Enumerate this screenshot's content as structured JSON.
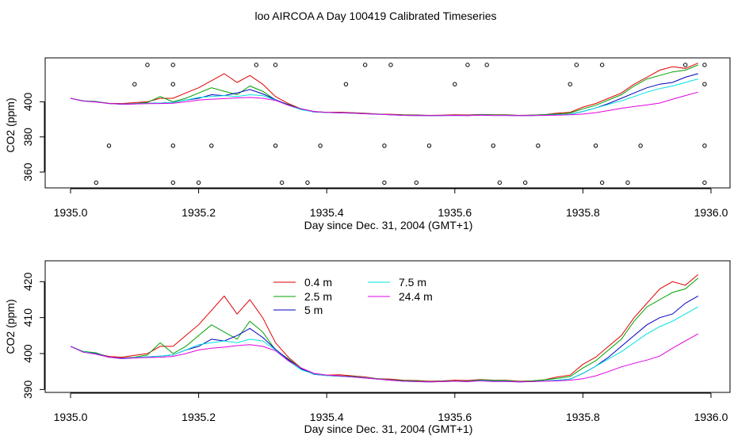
{
  "page": {
    "title": "loo AIRCOA A  Day 100419  Calibrated Timeseries"
  },
  "colors": {
    "0.4 m": "#e00000",
    "2.5 m": "#00a000",
    "5 m": "#0000c0",
    "7.5 m": "#00e0e0",
    "24.4 m": "#e000e0"
  },
  "chart_data": [
    {
      "type": "line",
      "title": "loo AIRCOA A  Day 100419  Calibrated Timeseries",
      "xlabel": "Day since Dec. 31, 2004 (GMT+1)",
      "ylabel": "CO2 (ppm)",
      "xlim": [
        1935.0,
        1936.0
      ],
      "ylim": [
        351,
        425
      ],
      "xticks": [
        "1935.0",
        "1935.2",
        "1935.4",
        "1935.6",
        "1935.8",
        "1936.0"
      ],
      "yticks": [
        "360",
        "380",
        "400"
      ],
      "ytick_values": [
        360,
        380,
        400
      ],
      "grid": false,
      "legend": "none",
      "x": [
        1935.0,
        1935.02,
        1935.04,
        1935.06,
        1935.08,
        1935.1,
        1935.12,
        1935.14,
        1935.16,
        1935.18,
        1935.2,
        1935.22,
        1935.24,
        1935.26,
        1935.28,
        1935.3,
        1935.32,
        1935.34,
        1935.36,
        1935.38,
        1935.4,
        1935.42,
        1935.44,
        1935.46,
        1935.48,
        1935.5,
        1935.52,
        1935.54,
        1935.56,
        1935.58,
        1935.6,
        1935.62,
        1935.64,
        1935.66,
        1935.68,
        1935.7,
        1935.72,
        1935.74,
        1935.76,
        1935.78,
        1935.8,
        1935.82,
        1935.84,
        1935.86,
        1935.88,
        1935.9,
        1935.92,
        1935.94,
        1935.96,
        1935.98
      ],
      "series": [
        {
          "name": "0.4 m",
          "values": [
            402,
            400.5,
            400,
            399.2,
            399,
            399.5,
            400,
            402,
            402,
            405,
            408,
            412,
            416,
            411,
            415,
            410,
            403,
            399,
            396,
            394.5,
            394,
            394.1,
            393.8,
            393.5,
            393,
            392.9,
            392.6,
            392.5,
            392.3,
            392.4,
            392.6,
            392.5,
            392.8,
            392.6,
            392.6,
            392.3,
            392.4,
            392.7,
            393.5,
            394,
            397,
            399,
            402,
            405,
            410,
            414,
            418,
            420,
            419,
            422
          ]
        },
        {
          "name": "2.5 m",
          "values": [
            402,
            400.6,
            400.2,
            399,
            398.8,
            399,
            399.6,
            403,
            400,
            402,
            405,
            408,
            406,
            404,
            409,
            406,
            401,
            398.5,
            396,
            394.4,
            394,
            393.8,
            393.7,
            393.3,
            393,
            392.7,
            392.5,
            392.4,
            392.2,
            392.3,
            392.4,
            392.3,
            392.7,
            392.5,
            392.5,
            392.2,
            392.4,
            392.7,
            393.1,
            393.6,
            396,
            398,
            401,
            404,
            409,
            413,
            415,
            417,
            418,
            421
          ]
        },
        {
          "name": "5 m",
          "values": [
            402,
            400.4,
            400,
            399,
            398.6,
            398.8,
            399.1,
            399.3,
            399.6,
            401,
            402,
            404,
            403.5,
            405,
            407,
            404.5,
            401.2,
            398.3,
            395.8,
            394.2,
            393.9,
            393.7,
            393.5,
            393.2,
            392.9,
            392.6,
            392.3,
            392.2,
            392.1,
            392.2,
            392.3,
            392.2,
            392.5,
            392.3,
            392.3,
            392.1,
            392.2,
            392.4,
            392.6,
            392.9,
            394.5,
            396.5,
            399,
            402,
            405,
            408,
            410,
            411,
            414,
            416
          ]
        },
        {
          "name": "7.5 m",
          "values": [
            402,
            400.5,
            399.9,
            399,
            398.7,
            398.9,
            399.1,
            399.3,
            399.6,
            401,
            402.5,
            403,
            403.5,
            403,
            404,
            403.5,
            401,
            398,
            395.5,
            394.3,
            393.9,
            393.7,
            393.5,
            393.3,
            392.9,
            392.6,
            392.3,
            392.2,
            392.1,
            392.2,
            392.3,
            392.2,
            392.5,
            392.3,
            392.3,
            392.1,
            392.2,
            392.4,
            392.6,
            392.9,
            394.5,
            396.5,
            398.5,
            400.5,
            403,
            405.5,
            407.5,
            409,
            411,
            413
          ]
        },
        {
          "name": "24.4 m",
          "values": [
            402,
            400.4,
            399.8,
            399,
            398.7,
            398.8,
            398.9,
            399,
            399.2,
            400,
            401,
            401.5,
            401.8,
            402.2,
            402.5,
            402,
            400.8,
            398,
            396,
            394.5,
            394,
            393.8,
            393.5,
            393.2,
            392.9,
            392.6,
            392.3,
            392.2,
            392.1,
            392.2,
            392.3,
            392.2,
            392.4,
            392.2,
            392.2,
            392.1,
            392.2,
            392.3,
            392.4,
            392.6,
            393,
            393.8,
            395,
            396.3,
            397.3,
            398.2,
            399.3,
            401.5,
            403.5,
            405.5
          ]
        }
      ],
      "outliers": [
        {
          "x": 1935.04,
          "y": 354
        },
        {
          "x": 1935.06,
          "y": 375
        },
        {
          "x": 1935.1,
          "y": 410
        },
        {
          "x": 1935.12,
          "y": 421
        },
        {
          "x": 1935.16,
          "y": 421
        },
        {
          "x": 1935.16,
          "y": 410
        },
        {
          "x": 1935.16,
          "y": 375
        },
        {
          "x": 1935.16,
          "y": 354
        },
        {
          "x": 1935.2,
          "y": 354
        },
        {
          "x": 1935.22,
          "y": 375
        },
        {
          "x": 1935.29,
          "y": 421
        },
        {
          "x": 1935.32,
          "y": 421
        },
        {
          "x": 1935.32,
          "y": 375
        },
        {
          "x": 1935.33,
          "y": 354
        },
        {
          "x": 1935.37,
          "y": 354
        },
        {
          "x": 1935.39,
          "y": 375
        },
        {
          "x": 1935.43,
          "y": 410
        },
        {
          "x": 1935.46,
          "y": 421
        },
        {
          "x": 1935.49,
          "y": 375
        },
        {
          "x": 1935.49,
          "y": 354
        },
        {
          "x": 1935.5,
          "y": 421
        },
        {
          "x": 1935.54,
          "y": 354
        },
        {
          "x": 1935.56,
          "y": 375
        },
        {
          "x": 1935.6,
          "y": 410
        },
        {
          "x": 1935.62,
          "y": 421
        },
        {
          "x": 1935.65,
          "y": 421
        },
        {
          "x": 1935.66,
          "y": 375
        },
        {
          "x": 1935.67,
          "y": 354
        },
        {
          "x": 1935.71,
          "y": 354
        },
        {
          "x": 1935.73,
          "y": 375
        },
        {
          "x": 1935.78,
          "y": 410
        },
        {
          "x": 1935.79,
          "y": 421
        },
        {
          "x": 1935.82,
          "y": 375
        },
        {
          "x": 1935.83,
          "y": 421
        },
        {
          "x": 1935.83,
          "y": 354
        },
        {
          "x": 1935.87,
          "y": 354
        },
        {
          "x": 1935.89,
          "y": 375
        },
        {
          "x": 1935.96,
          "y": 421
        },
        {
          "x": 1935.99,
          "y": 421
        },
        {
          "x": 1935.99,
          "y": 410
        },
        {
          "x": 1935.99,
          "y": 375
        },
        {
          "x": 1935.99,
          "y": 354
        }
      ]
    },
    {
      "type": "line",
      "xlabel": "Day since Dec. 31, 2004 (GMT+1)",
      "ylabel": "CO2 (ppm)",
      "xlim": [
        1935.0,
        1936.0
      ],
      "ylim": [
        389.2,
        425.8
      ],
      "xticks": [
        "1935.0",
        "1935.2",
        "1935.4",
        "1935.6",
        "1935.8",
        "1936.0"
      ],
      "yticks": [
        "390",
        "400",
        "410",
        "420"
      ],
      "ytick_values": [
        390,
        400,
        410,
        420
      ],
      "grid": false,
      "legend": "top-left",
      "x": [
        1935.0,
        1935.02,
        1935.04,
        1935.06,
        1935.08,
        1935.1,
        1935.12,
        1935.14,
        1935.16,
        1935.18,
        1935.2,
        1935.22,
        1935.24,
        1935.26,
        1935.28,
        1935.3,
        1935.32,
        1935.34,
        1935.36,
        1935.38,
        1935.4,
        1935.42,
        1935.44,
        1935.46,
        1935.48,
        1935.5,
        1935.52,
        1935.54,
        1935.56,
        1935.58,
        1935.6,
        1935.62,
        1935.64,
        1935.66,
        1935.68,
        1935.7,
        1935.72,
        1935.74,
        1935.76,
        1935.78,
        1935.8,
        1935.82,
        1935.84,
        1935.86,
        1935.88,
        1935.9,
        1935.92,
        1935.94,
        1935.96,
        1935.98
      ],
      "series": [
        {
          "name": "0.4 m",
          "values": [
            402,
            400.5,
            400,
            399.2,
            399,
            399.5,
            400,
            402,
            402,
            405,
            408,
            412,
            416,
            411,
            415,
            410,
            403,
            399,
            396,
            394.5,
            394,
            394.1,
            393.8,
            393.5,
            393,
            392.9,
            392.6,
            392.5,
            392.3,
            392.4,
            392.6,
            392.5,
            392.8,
            392.6,
            392.6,
            392.3,
            392.4,
            392.7,
            393.5,
            394,
            397,
            399,
            402,
            405,
            410,
            414,
            418,
            420,
            419,
            422
          ]
        },
        {
          "name": "2.5 m",
          "values": [
            402,
            400.6,
            400.2,
            399,
            398.8,
            399,
            399.6,
            403,
            400,
            402,
            405,
            408,
            406,
            404,
            409,
            406,
            401,
            398.5,
            396,
            394.4,
            394,
            393.8,
            393.7,
            393.3,
            393,
            392.7,
            392.5,
            392.4,
            392.2,
            392.3,
            392.4,
            392.3,
            392.7,
            392.5,
            392.5,
            392.2,
            392.4,
            392.7,
            393.1,
            393.6,
            396,
            398,
            401,
            404,
            409,
            413,
            415,
            417,
            418,
            421
          ]
        },
        {
          "name": "5 m",
          "values": [
            402,
            400.4,
            400,
            399,
            398.6,
            398.8,
            399.1,
            399.3,
            399.6,
            401,
            402,
            404,
            403.5,
            405,
            407,
            404.5,
            401.2,
            398.3,
            395.8,
            394.2,
            393.9,
            393.7,
            393.5,
            393.2,
            392.9,
            392.6,
            392.3,
            392.2,
            392.1,
            392.2,
            392.3,
            392.2,
            392.5,
            392.3,
            392.3,
            392.1,
            392.2,
            392.4,
            392.6,
            392.9,
            394.5,
            396.5,
            399,
            402,
            405,
            408,
            410,
            411,
            414,
            416
          ]
        },
        {
          "name": "7.5 m",
          "values": [
            402,
            400.5,
            399.9,
            399,
            398.7,
            398.9,
            399.1,
            399.3,
            399.6,
            401,
            402.5,
            403,
            403.5,
            403,
            404,
            403.5,
            401,
            398,
            395.5,
            394.3,
            393.9,
            393.7,
            393.5,
            393.3,
            392.9,
            392.6,
            392.3,
            392.2,
            392.1,
            392.2,
            392.3,
            392.2,
            392.5,
            392.3,
            392.3,
            392.1,
            392.2,
            392.4,
            392.6,
            392.9,
            394.5,
            396.5,
            398.5,
            400.5,
            403,
            405.5,
            407.5,
            409,
            411,
            413
          ]
        },
        {
          "name": "24.4 m",
          "values": [
            402,
            400.4,
            399.8,
            399,
            398.7,
            398.8,
            398.9,
            399,
            399.2,
            400,
            401,
            401.5,
            401.8,
            402.2,
            402.5,
            402,
            400.8,
            398,
            396,
            394.5,
            394,
            393.8,
            393.5,
            393.2,
            392.9,
            392.6,
            392.3,
            392.2,
            392.1,
            392.2,
            392.3,
            392.2,
            392.4,
            392.2,
            392.2,
            392.1,
            392.2,
            392.3,
            392.4,
            392.6,
            393,
            393.8,
            395,
            396.3,
            397.3,
            398.2,
            399.3,
            401.5,
            403.5,
            405.5
          ]
        }
      ]
    }
  ]
}
